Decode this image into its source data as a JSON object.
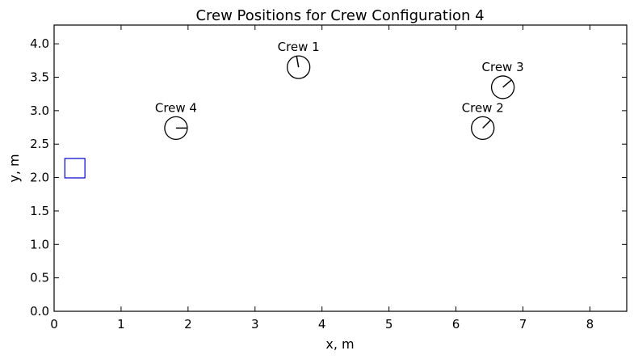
{
  "chart_data": {
    "type": "scatter",
    "title": "Crew Positions for Crew Configuration 4",
    "xlabel": "x, m",
    "ylabel": "y, m",
    "xlim": [
      0,
      8.55
    ],
    "ylim": [
      0,
      4.28
    ],
    "xticks": [
      "0",
      "1",
      "2",
      "3",
      "4",
      "5",
      "6",
      "7",
      "8"
    ],
    "yticks": [
      "0.0",
      "0.5",
      "1.0",
      "1.5",
      "2.0",
      "2.5",
      "3.0",
      "3.5",
      "4.0"
    ],
    "grid": false,
    "crew": [
      {
        "label": "Crew 1",
        "x": 3.65,
        "y": 3.65,
        "heading_deg": 100
      },
      {
        "label": "Crew 2",
        "x": 6.4,
        "y": 2.74,
        "heading_deg": 45
      },
      {
        "label": "Crew 3",
        "x": 6.7,
        "y": 3.35,
        "heading_deg": 40
      },
      {
        "label": "Crew 4",
        "x": 1.82,
        "y": 2.74,
        "heading_deg": 0
      }
    ],
    "box": {
      "x": 0.31,
      "y": 2.14,
      "w": 0.3,
      "h": 0.29,
      "color": "#0000cc"
    },
    "marker_color": "#000000"
  }
}
